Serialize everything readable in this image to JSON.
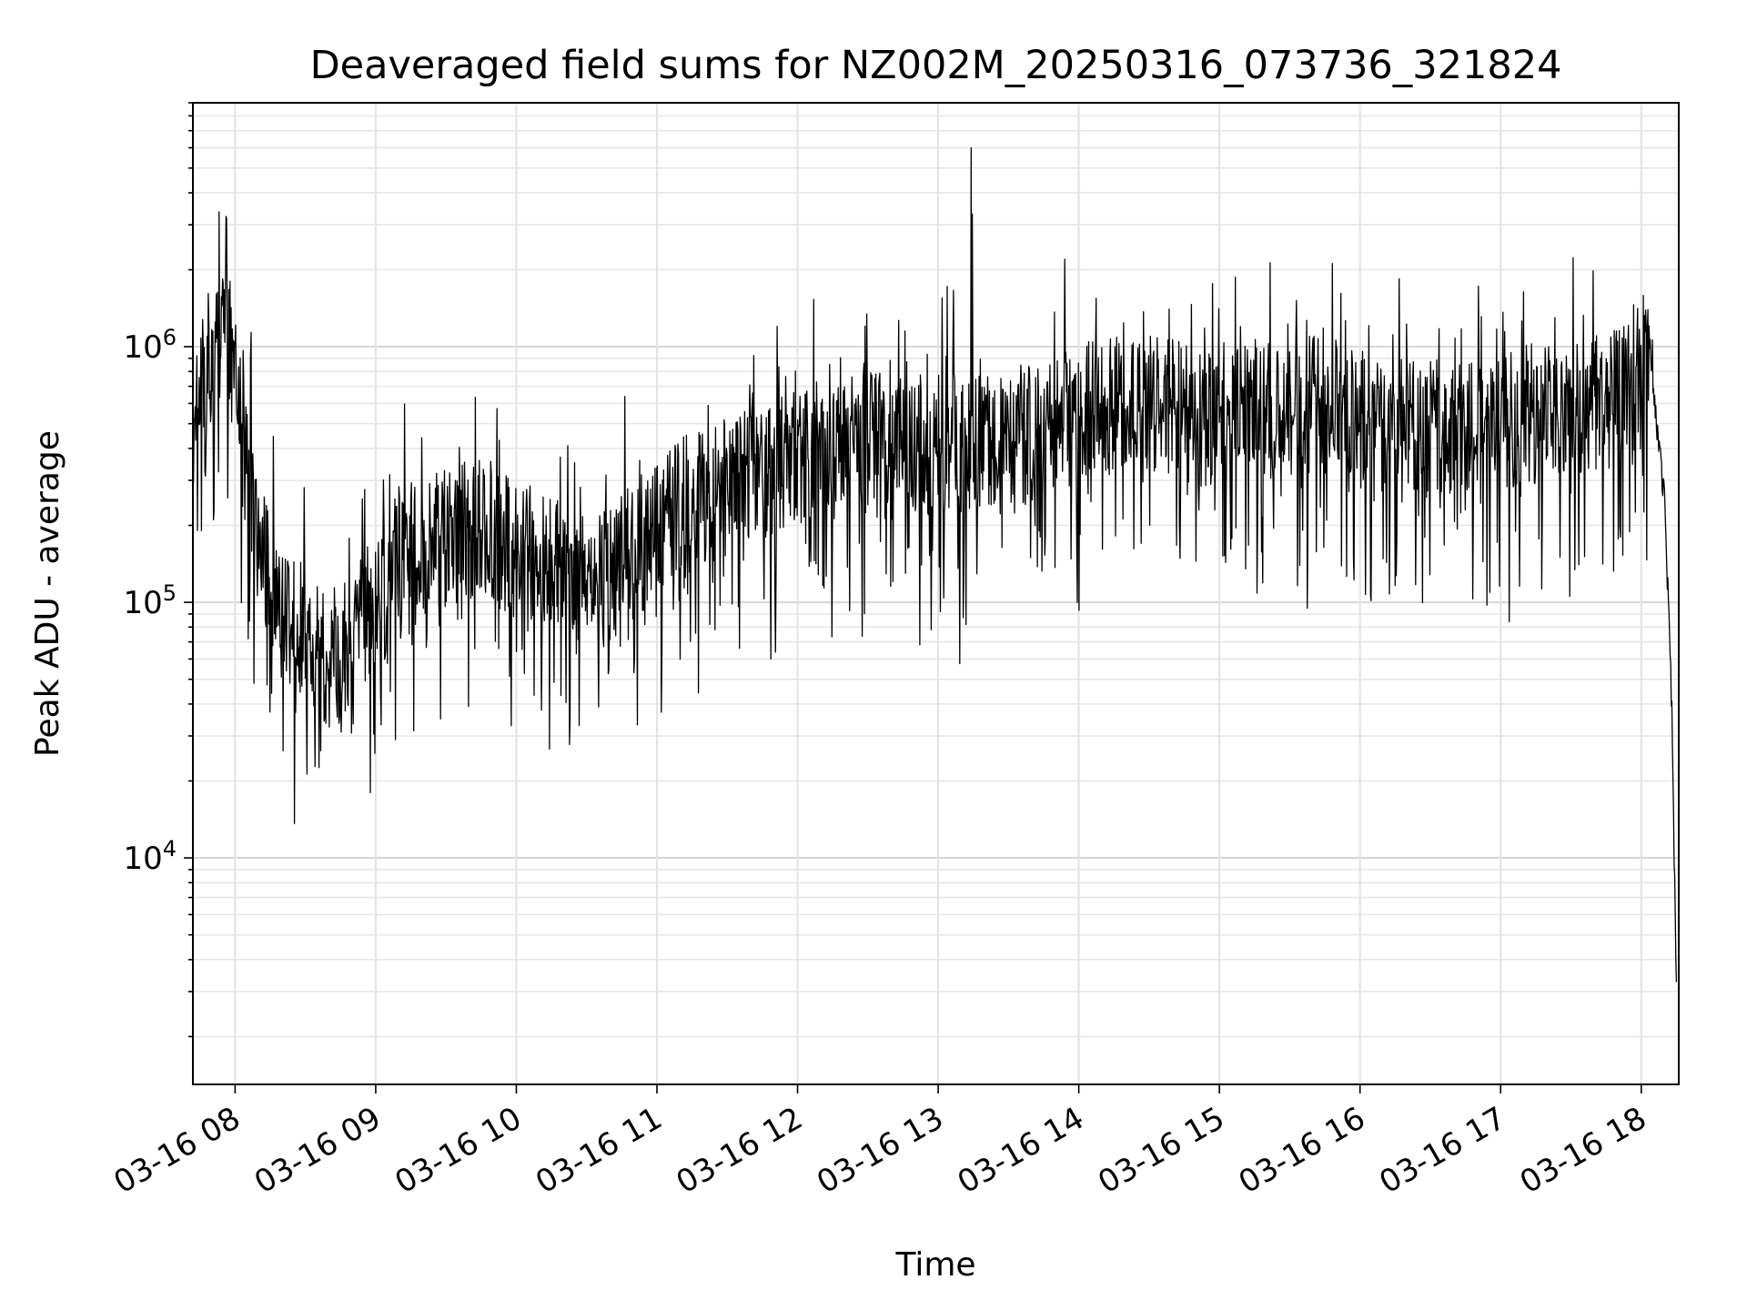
{
  "chart_data": {
    "type": "line",
    "title": "Deaveraged field sums for NZ002M_20250316_073736_321824",
    "xlabel": "Time",
    "ylabel": "Peak ADU - average",
    "yscale": "log",
    "grid": true,
    "ylim": [
      1300,
      9000000
    ],
    "xlim": [
      "2025-03-16 07:42",
      "2025-03-16 18:16"
    ],
    "x_tick_labels": [
      "03-16 08",
      "03-16 09",
      "03-16 10",
      "03-16 11",
      "03-16 12",
      "03-16 13",
      "03-16 14",
      "03-16 15",
      "03-16 16",
      "03-16 17",
      "03-16 18"
    ],
    "y_tick_labels": [
      {
        "base": "10",
        "exp": "4",
        "value": 10000
      },
      {
        "base": "10",
        "exp": "5",
        "value": 100000
      },
      {
        "base": "10",
        "exp": "6",
        "value": 1000000
      }
    ],
    "line_color": "#000000",
    "series": [
      {
        "x": [
          "2025-03-16 07:42",
          "2025-03-16 07:50",
          "2025-03-16 07:56",
          "2025-03-16 08:02",
          "2025-03-16 08:10",
          "2025-03-16 08:20",
          "2025-03-16 08:30",
          "2025-03-16 08:40",
          "2025-03-16 08:50",
          "2025-03-16 09:00",
          "2025-03-16 09:15",
          "2025-03-16 09:30",
          "2025-03-16 09:45",
          "2025-03-16 10:00",
          "2025-03-16 10:15",
          "2025-03-16 10:30",
          "2025-03-16 10:45",
          "2025-03-16 11:00",
          "2025-03-16 11:15",
          "2025-03-16 11:30",
          "2025-03-16 11:45",
          "2025-03-16 12:00",
          "2025-03-16 12:15",
          "2025-03-16 12:30",
          "2025-03-16 12:45",
          "2025-03-16 13:00",
          "2025-03-16 13:15",
          "2025-03-16 13:30",
          "2025-03-16 13:45",
          "2025-03-16 14:00",
          "2025-03-16 14:15",
          "2025-03-16 14:30",
          "2025-03-16 14:45",
          "2025-03-16 15:00",
          "2025-03-16 15:15",
          "2025-03-16 15:30",
          "2025-03-16 15:45",
          "2025-03-16 16:00",
          "2025-03-16 16:15",
          "2025-03-16 16:30",
          "2025-03-16 16:45",
          "2025-03-16 17:00",
          "2025-03-16 17:15",
          "2025-03-16 17:30",
          "2025-03-16 17:45",
          "2025-03-16 18:00",
          "2025-03-16 18:05",
          "2025-03-16 18:10",
          "2025-03-16 18:13",
          "2025-03-16 18:15"
        ],
        "y": [
          550000,
          800000,
          1300000,
          500000,
          180000,
          90000,
          70000,
          60000,
          70000,
          100000,
          150000,
          180000,
          200000,
          160000,
          140000,
          120000,
          140000,
          200000,
          250000,
          280000,
          320000,
          380000,
          400000,
          420000,
          450000,
          380000,
          420000,
          400000,
          500000,
          550000,
          580000,
          600000,
          550000,
          520000,
          550000,
          580000,
          600000,
          520000,
          500000,
          480000,
          500000,
          520000,
          550000,
          560000,
          560000,
          900000,
          700000,
          250000,
          40000,
          3000
        ]
      }
    ]
  }
}
